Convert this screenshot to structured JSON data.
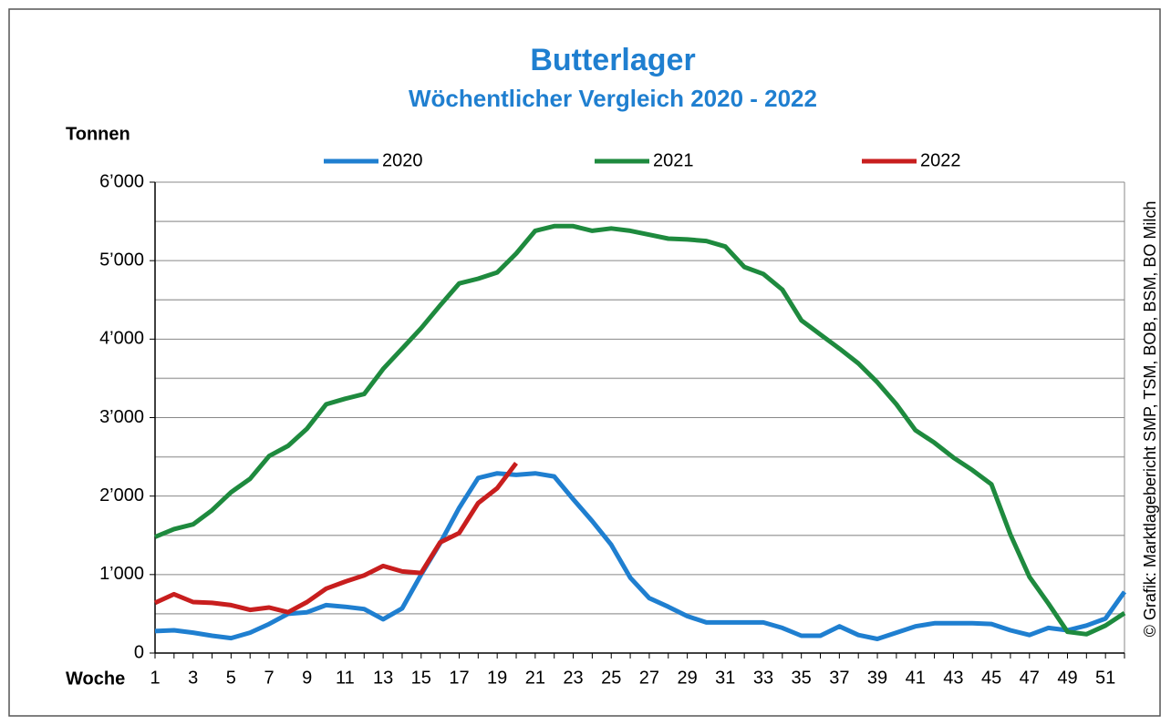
{
  "chart_data": {
    "type": "line",
    "title": "Butterlager",
    "subtitle": "Wöchentlicher Vergleich 2020 - 2022",
    "y_label": "Tonnen",
    "x_label": "Woche",
    "source": "© Grafik: Marktlagebericht SMP, TSM, BOB, BSM, BO Milch",
    "categories": [
      1,
      null,
      3,
      null,
      5,
      null,
      7,
      null,
      9,
      null,
      11,
      null,
      13,
      null,
      15,
      null,
      17,
      null,
      19,
      null,
      21,
      null,
      23,
      null,
      25,
      null,
      27,
      null,
      29,
      null,
      31,
      null,
      33,
      null,
      35,
      null,
      37,
      null,
      39,
      null,
      41,
      null,
      43,
      null,
      45,
      null,
      47,
      null,
      49,
      null,
      51,
      null
    ],
    "series": [
      {
        "name": "2020",
        "color": "#1f7fd0",
        "values": [
          280,
          290,
          260,
          220,
          190,
          260,
          370,
          500,
          520,
          610,
          590,
          560,
          430,
          570,
          1000,
          1400,
          1850,
          2230,
          2290,
          2270,
          2290,
          2250,
          1960,
          1680,
          1380,
          960,
          700,
          590,
          470,
          390,
          390,
          390,
          390,
          320,
          220,
          220,
          340,
          230,
          180,
          260,
          340,
          380,
          380,
          380,
          370,
          290,
          230,
          320,
          290,
          350,
          440,
          780
        ]
      },
      {
        "name": "2021",
        "color": "#1e8a3e",
        "values": [
          1480,
          1580,
          1640,
          1820,
          2050,
          2220,
          2510,
          2640,
          2860,
          3170,
          3240,
          3300,
          3620,
          3880,
          4140,
          4430,
          4710,
          4770,
          4850,
          5090,
          5380,
          5440,
          5440,
          5380,
          5410,
          5380,
          5330,
          5280,
          5270,
          5250,
          5180,
          4920,
          4830,
          4630,
          4240,
          4060,
          3880,
          3690,
          3450,
          3170,
          2840,
          2680,
          2490,
          2330,
          2150,
          1510,
          970,
          630,
          270,
          240,
          350,
          510
        ]
      },
      {
        "name": "2022",
        "color": "#c81e1e",
        "values": [
          640,
          750,
          650,
          640,
          610,
          550,
          580,
          520,
          650,
          820,
          910,
          990,
          1110,
          1040,
          1020,
          1410,
          1530,
          1910,
          2100,
          2420,
          null,
          null,
          null,
          null,
          null,
          null,
          null,
          null,
          null,
          null,
          null,
          null,
          null,
          null,
          null,
          null,
          null,
          null,
          null,
          null,
          null,
          null,
          null,
          null,
          null,
          null,
          null,
          null,
          null,
          null,
          null,
          null
        ]
      }
    ],
    "ylim": [
      0,
      6000
    ],
    "yticks": [
      0,
      {
        "value": 1000,
        "label": "1’000"
      },
      {
        "value": 2000,
        "label": "2’000"
      },
      {
        "value": 3000,
        "label": "3’000"
      },
      {
        "value": 4000,
        "label": "4’000"
      },
      {
        "value": 5000,
        "label": "5’000"
      },
      {
        "value": 6000,
        "label": "6’000"
      }
    ],
    "minor_yticks": [
      500,
      1500,
      2500,
      3500,
      4500,
      5500
    ],
    "grid": true,
    "legend": "top"
  }
}
